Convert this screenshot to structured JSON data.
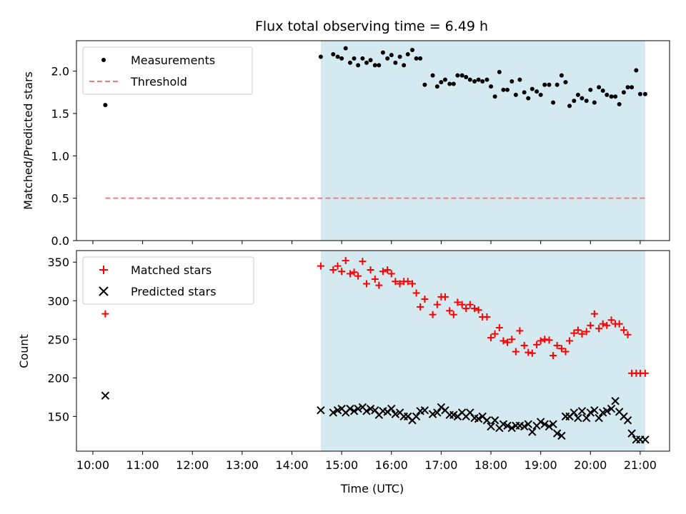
{
  "chart_data": [
    {
      "type": "scatter",
      "title": "Flux total observing time = 6.49 h",
      "xlabel": "",
      "ylabel": "Matched/Predicted stars",
      "xlim": [
        -0.33,
        11.59
      ],
      "ylim": [
        0,
        2.36
      ],
      "xticks": [
        "10:00",
        "11:00",
        "12:00",
        "13:00",
        "14:00",
        "15:00",
        "16:00",
        "17:00",
        "18:00",
        "19:00",
        "20:00",
        "21:00"
      ],
      "yticks": [
        0.0,
        0.5,
        1.0,
        1.5,
        2.0
      ],
      "ytick_labels": [
        "0.0",
        "0.5",
        "1.0",
        "1.5",
        "2.0"
      ],
      "shaded_span": [
        4.58,
        11.1
      ],
      "shade_color": "#d4eaf0",
      "legend_position": "upper left",
      "legend": [
        "Measurements",
        "Threshold"
      ],
      "series": [
        {
          "name": "Measurements",
          "marker": "dot",
          "color": "#000000",
          "x": [
            0.25,
            4.58,
            4.83,
            4.92,
            5.0,
            5.08,
            5.17,
            5.25,
            5.33,
            5.42,
            5.5,
            5.58,
            5.67,
            5.75,
            5.83,
            5.92,
            6.0,
            6.08,
            6.17,
            6.25,
            6.33,
            6.42,
            6.5,
            6.58,
            6.67,
            6.83,
            6.92,
            7.0,
            7.08,
            7.17,
            7.25,
            7.33,
            7.42,
            7.5,
            7.58,
            7.67,
            7.75,
            7.83,
            7.92,
            8.0,
            8.08,
            8.17,
            8.25,
            8.33,
            8.42,
            8.5,
            8.58,
            8.67,
            8.75,
            8.83,
            8.92,
            9.0,
            9.08,
            9.17,
            9.25,
            9.33,
            9.42,
            9.5,
            9.58,
            9.67,
            9.75,
            9.83,
            9.92,
            10.0,
            10.08,
            10.17,
            10.25,
            10.33,
            10.42,
            10.5,
            10.58,
            10.67,
            10.75,
            10.83,
            10.92,
            11.0,
            11.1
          ],
          "y": [
            1.6,
            2.17,
            2.2,
            2.17,
            2.15,
            2.27,
            2.1,
            2.15,
            2.07,
            2.15,
            2.1,
            2.13,
            2.07,
            2.07,
            2.22,
            2.15,
            2.19,
            2.1,
            2.17,
            2.07,
            2.2,
            2.25,
            2.15,
            2.15,
            1.84,
            1.95,
            1.82,
            1.87,
            1.9,
            1.85,
            1.85,
            1.95,
            1.95,
            1.93,
            1.9,
            1.88,
            1.9,
            1.88,
            1.9,
            1.82,
            1.7,
            1.99,
            1.78,
            1.78,
            1.88,
            1.72,
            1.9,
            1.75,
            1.68,
            1.79,
            1.76,
            1.72,
            1.84,
            1.84,
            1.63,
            1.84,
            1.95,
            1.87,
            1.59,
            1.65,
            1.72,
            1.68,
            1.65,
            1.78,
            1.63,
            1.81,
            1.77,
            1.72,
            1.7,
            1.7,
            1.61,
            1.75,
            1.81,
            1.81,
            2.01,
            1.73,
            1.73
          ]
        },
        {
          "name": "Threshold",
          "style": "dashed",
          "color": "#f08080",
          "x": [
            0.25,
            11.1
          ],
          "y": [
            0.5,
            0.5
          ]
        }
      ]
    },
    {
      "type": "scatter",
      "title": "",
      "xlabel": "Time (UTC)",
      "ylabel": "Count",
      "xlim": [
        -0.33,
        11.59
      ],
      "ylim": [
        105,
        365
      ],
      "xticks": [
        "10:00",
        "11:00",
        "12:00",
        "13:00",
        "14:00",
        "15:00",
        "16:00",
        "17:00",
        "18:00",
        "19:00",
        "20:00",
        "21:00"
      ],
      "yticks": [
        150,
        200,
        250,
        300,
        350
      ],
      "ytick_labels": [
        "150",
        "200",
        "250",
        "300",
        "350"
      ],
      "shaded_span": [
        4.58,
        11.1
      ],
      "shade_color": "#d4eaf0",
      "legend_position": "upper left",
      "legend": [
        "Matched stars",
        "Predicted stars"
      ],
      "series": [
        {
          "name": "Matched stars",
          "marker": "plus",
          "color": "#ff0000",
          "x": [
            0.25,
            4.58,
            4.83,
            4.92,
            5.0,
            5.08,
            5.17,
            5.25,
            5.33,
            5.42,
            5.5,
            5.58,
            5.67,
            5.75,
            5.83,
            5.92,
            6.0,
            6.08,
            6.17,
            6.25,
            6.33,
            6.42,
            6.5,
            6.58,
            6.67,
            6.83,
            6.92,
            7.0,
            7.08,
            7.17,
            7.25,
            7.33,
            7.42,
            7.5,
            7.58,
            7.67,
            7.75,
            7.83,
            7.92,
            8.0,
            8.08,
            8.17,
            8.25,
            8.33,
            8.42,
            8.5,
            8.58,
            8.67,
            8.75,
            8.83,
            8.92,
            9.0,
            9.08,
            9.17,
            9.25,
            9.33,
            9.42,
            9.5,
            9.58,
            9.67,
            9.75,
            9.83,
            9.92,
            10.0,
            10.08,
            10.17,
            10.25,
            10.33,
            10.42,
            10.5,
            10.58,
            10.67,
            10.75,
            10.83,
            10.92,
            11.0,
            11.1
          ],
          "y": [
            283,
            345,
            340,
            345,
            338,
            352,
            335,
            337,
            332,
            351,
            322,
            340,
            328,
            320,
            338,
            340,
            335,
            325,
            322,
            325,
            325,
            322,
            310,
            292,
            302,
            282,
            295,
            305,
            305,
            287,
            282,
            298,
            295,
            290,
            295,
            290,
            288,
            279,
            279,
            252,
            257,
            265,
            248,
            246,
            250,
            234,
            261,
            242,
            233,
            232,
            243,
            248,
            250,
            249,
            229,
            242,
            238,
            234,
            248,
            258,
            262,
            257,
            260,
            268,
            283,
            264,
            270,
            268,
            275,
            270,
            270,
            262,
            256,
            206,
            206,
            206,
            206
          ]
        },
        {
          "name": "Predicted stars",
          "marker": "x",
          "color": "#000000",
          "x": [
            0.25,
            4.58,
            4.83,
            4.92,
            5.0,
            5.08,
            5.17,
            5.25,
            5.33,
            5.42,
            5.5,
            5.58,
            5.67,
            5.75,
            5.83,
            5.92,
            6.0,
            6.08,
            6.17,
            6.25,
            6.33,
            6.42,
            6.5,
            6.58,
            6.67,
            6.83,
            6.92,
            7.0,
            7.08,
            7.17,
            7.25,
            7.33,
            7.42,
            7.5,
            7.58,
            7.67,
            7.75,
            7.83,
            7.92,
            8.0,
            8.08,
            8.17,
            8.25,
            8.33,
            8.42,
            8.5,
            8.58,
            8.67,
            8.75,
            8.83,
            8.92,
            9.0,
            9.08,
            9.17,
            9.25,
            9.33,
            9.42,
            9.5,
            9.58,
            9.67,
            9.75,
            9.83,
            9.92,
            10.0,
            10.08,
            10.17,
            10.25,
            10.33,
            10.42,
            10.5,
            10.58,
            10.67,
            10.75,
            10.83,
            10.92,
            11.0,
            11.1
          ],
          "y": [
            177,
            158,
            155,
            158,
            160,
            155,
            160,
            157,
            160,
            162,
            157,
            160,
            158,
            152,
            157,
            156,
            160,
            153,
            155,
            150,
            150,
            145,
            150,
            157,
            158,
            153,
            155,
            162,
            158,
            152,
            152,
            150,
            155,
            150,
            155,
            148,
            147,
            150,
            145,
            137,
            145,
            135,
            140,
            138,
            135,
            138,
            138,
            137,
            140,
            130,
            138,
            143,
            140,
            137,
            140,
            128,
            125,
            150,
            150,
            155,
            148,
            157,
            148,
            155,
            158,
            148,
            155,
            157,
            160,
            170,
            156,
            150,
            145,
            128,
            120,
            120,
            120
          ]
        }
      ]
    }
  ]
}
